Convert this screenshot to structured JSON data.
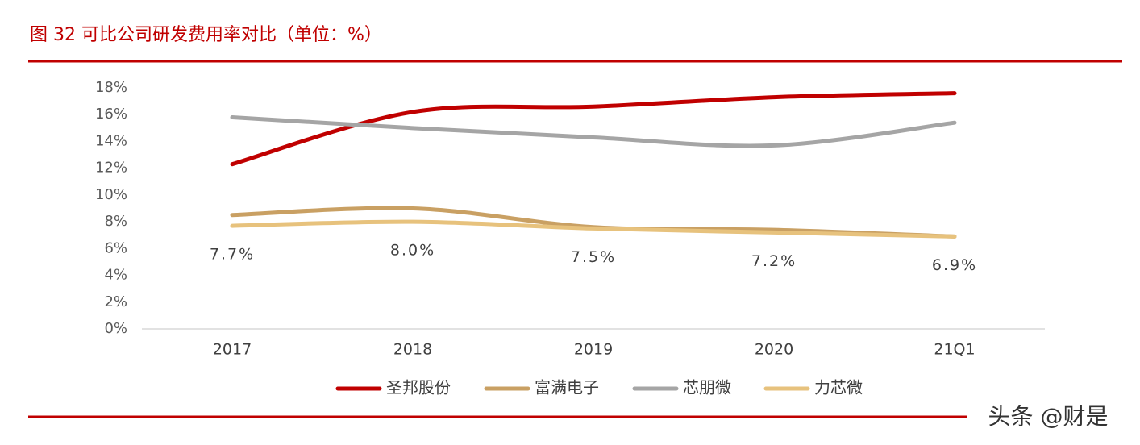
{
  "chart_data": {
    "type": "line",
    "title": "图 32 可比公司研发费用率对比（单位：%）",
    "categories": [
      "2017",
      "2018",
      "2019",
      "2020",
      "21Q1"
    ],
    "ylim": [
      0,
      18
    ],
    "yticks": [
      {
        "value": 0,
        "label": "0%"
      },
      {
        "value": 2,
        "label": "2%"
      },
      {
        "value": 4,
        "label": "4%"
      },
      {
        "value": 6,
        "label": "6%"
      },
      {
        "value": 8,
        "label": "8%"
      },
      {
        "value": 10,
        "label": "10%"
      },
      {
        "value": 12,
        "label": "12%"
      },
      {
        "value": 14,
        "label": "14%"
      },
      {
        "value": 16,
        "label": "16%"
      },
      {
        "value": 18,
        "label": "18%"
      }
    ],
    "series": [
      {
        "name": "圣邦股份",
        "color": "#c00000",
        "values": [
          12.3,
          16.2,
          16.6,
          17.3,
          17.6
        ]
      },
      {
        "name": "富满电子",
        "color": "#c9a063",
        "values": [
          8.5,
          9.0,
          7.6,
          7.4,
          6.9
        ]
      },
      {
        "name": "芯朋微",
        "color": "#a5a5a5",
        "values": [
          15.8,
          15.0,
          14.3,
          13.7,
          15.4
        ]
      },
      {
        "name": "力芯微",
        "color": "#e7c27d",
        "values": [
          7.7,
          8.0,
          7.5,
          7.2,
          6.9
        ],
        "value_labels": [
          "7.7%",
          "8.0%",
          "7.5%",
          "7.2%",
          "6.9%"
        ]
      }
    ],
    "legend": "bottom",
    "watermark": "头条 @财是"
  }
}
